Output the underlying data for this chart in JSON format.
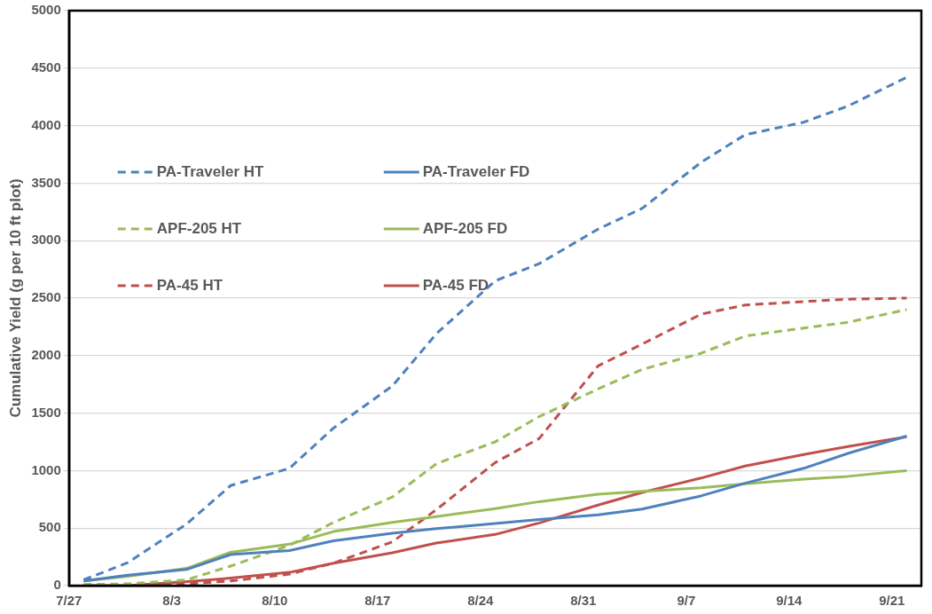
{
  "chart_data": {
    "type": "line",
    "ylabel": "Cumulative Yield (g per 10 ft plot)",
    "x": [
      "--07-28",
      "--07-31",
      "--08-04",
      "--08-07",
      "--08-11",
      "--08-14",
      "--08-18",
      "--08-21",
      "--08-25",
      "--08-28",
      "--09-01",
      "--09-04",
      "--09-08",
      "--09-11",
      "--09-15",
      "--09-18",
      "--09-22"
    ],
    "xlim": [
      "--07-27",
      "--09-23"
    ],
    "xticks": [
      {
        "value": "--07-27",
        "label": "7/27"
      },
      {
        "value": "--08-03",
        "label": "8/3"
      },
      {
        "value": "--08-10",
        "label": "8/10"
      },
      {
        "value": "--08-17",
        "label": "8/17"
      },
      {
        "value": "--08-24",
        "label": "8/24"
      },
      {
        "value": "--08-31",
        "label": "8/31"
      },
      {
        "value": "--09-07",
        "label": "9/7"
      },
      {
        "value": "--09-14",
        "label": "9/14"
      },
      {
        "value": "--09-21",
        "label": "9/21"
      }
    ],
    "ylim": [
      0,
      5000
    ],
    "yticks": [
      0,
      500,
      1000,
      1500,
      2000,
      2500,
      3000,
      3500,
      4000,
      4500,
      5000
    ],
    "grid": "y",
    "legend": "top left",
    "marker": "none",
    "series": [
      {
        "name": "PA-Traveler HT",
        "color": "#4f81bd",
        "line_style": "dashed",
        "values": [
          50,
          200,
          535,
          870,
          1020,
          1370,
          1735,
          2190,
          2650,
          2800,
          3100,
          3280,
          3680,
          3920,
          4030,
          4170,
          4420
        ]
      },
      {
        "name": "PA-Traveler FD",
        "color": "#4f81bd",
        "line_style": "solid",
        "values": [
          40,
          90,
          140,
          270,
          305,
          390,
          455,
          495,
          540,
          575,
          615,
          665,
          780,
          890,
          1020,
          1150,
          1300
        ]
      },
      {
        "name": "APF-205 HT",
        "color": "#9bbb59",
        "line_style": "dashed",
        "values": [
          10,
          15,
          50,
          170,
          350,
          550,
          770,
          1060,
          1250,
          1470,
          1710,
          1880,
          2020,
          2170,
          2240,
          2290,
          2400
        ]
      },
      {
        "name": "APF-205 FD",
        "color": "#9bbb59",
        "line_style": "solid",
        "values": [
          40,
          80,
          150,
          290,
          360,
          470,
          550,
          600,
          670,
          730,
          795,
          820,
          850,
          885,
          925,
          950,
          1000
        ]
      },
      {
        "name": "PA-45 HT",
        "color": "#c0504d",
        "line_style": "dashed",
        "values": [
          0,
          0,
          15,
          40,
          100,
          195,
          380,
          660,
          1070,
          1280,
          1910,
          2100,
          2360,
          2440,
          2470,
          2490,
          2500
        ]
      },
      {
        "name": "PA-45 FD",
        "color": "#c0504d",
        "line_style": "solid",
        "values": [
          0,
          0,
          35,
          65,
          115,
          195,
          285,
          370,
          445,
          545,
          700,
          810,
          935,
          1040,
          1140,
          1210,
          1295
        ]
      }
    ]
  }
}
